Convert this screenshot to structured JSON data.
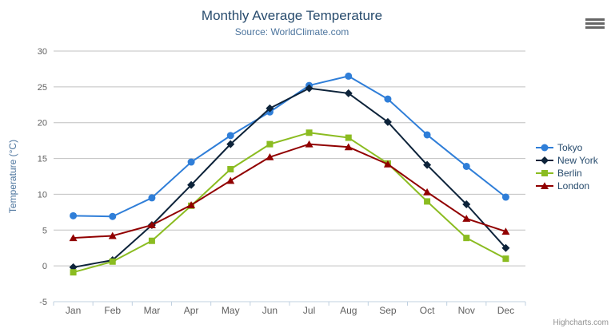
{
  "header": {
    "title": "Monthly Average Temperature",
    "subtitle": "Source: WorldClimate.com"
  },
  "chart_data": {
    "type": "line",
    "title": "Monthly Average Temperature",
    "subtitle": "Source: WorldClimate.com",
    "xlabel": "",
    "ylabel": "Temperature (°C)",
    "categories": [
      "Jan",
      "Feb",
      "Mar",
      "Apr",
      "May",
      "Jun",
      "Jul",
      "Aug",
      "Sep",
      "Oct",
      "Nov",
      "Dec"
    ],
    "ylim": [
      -5,
      30
    ],
    "yticks": [
      -5,
      0,
      5,
      10,
      15,
      20,
      25,
      30
    ],
    "grid": true,
    "legend_position": "right",
    "series": [
      {
        "name": "Tokyo",
        "color": "#2f7ed8",
        "marker": "circle",
        "values": [
          7.0,
          6.9,
          9.5,
          14.5,
          18.2,
          21.5,
          25.2,
          26.5,
          23.3,
          18.3,
          13.9,
          9.6
        ]
      },
      {
        "name": "New York",
        "color": "#0d233a",
        "marker": "diamond",
        "values": [
          -0.2,
          0.8,
          5.7,
          11.3,
          17.0,
          22.0,
          24.8,
          24.1,
          20.1,
          14.1,
          8.6,
          2.5
        ]
      },
      {
        "name": "Berlin",
        "color": "#8bbc21",
        "marker": "square",
        "values": [
          -0.9,
          0.6,
          3.5,
          8.4,
          13.5,
          17.0,
          18.6,
          17.9,
          14.3,
          9.0,
          3.9,
          1.0
        ]
      },
      {
        "name": "London",
        "color": "#910000",
        "marker": "triangle",
        "values": [
          3.9,
          4.2,
          5.7,
          8.5,
          11.9,
          15.2,
          17.0,
          16.6,
          14.2,
          10.3,
          6.6,
          4.8
        ]
      }
    ]
  },
  "credit": {
    "label": "Highcharts.com"
  },
  "export_menu": {
    "icon": "hamburger-menu-icon"
  },
  "theme": {
    "title_color": "#274b6d",
    "subtitle_color": "#4d759e",
    "axis_title_color": "#4d759e",
    "axis_label_color": "#606060",
    "grid_color": "#c0c0c0",
    "axis_line_color": "#c0d0e0",
    "legend_text_color": "#274b6d",
    "credit_color": "#909090"
  }
}
